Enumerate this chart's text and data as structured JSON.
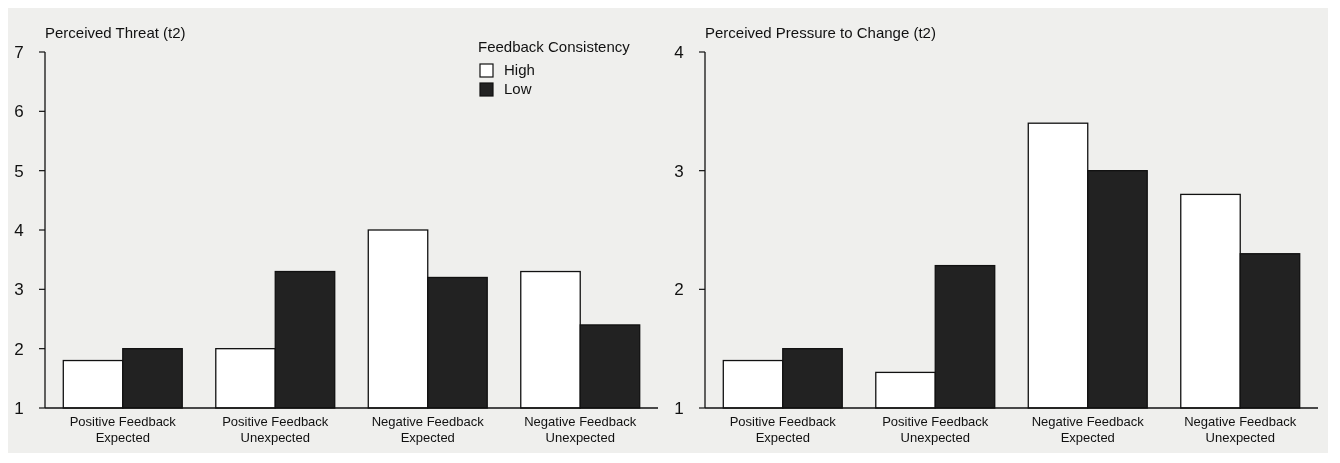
{
  "chart_data": [
    {
      "type": "bar",
      "title": "Perceived Threat (t2)",
      "categories": [
        "Positive Feedback\nExpected",
        "Positive Feedback\nUnexpected",
        "Negative Feedback\nExpected",
        "Negative Feedback\nUnexpected"
      ],
      "legend_title": "Feedback Consistency",
      "legend": "top right",
      "ylim": [
        1,
        7
      ],
      "yticks": [
        1,
        2,
        3,
        4,
        5,
        6,
        7
      ],
      "grid": false,
      "series": [
        {
          "name": "High",
          "color": "#ffffff",
          "values": [
            1.8,
            2.0,
            4.0,
            3.3
          ]
        },
        {
          "name": "Low",
          "color": "#222222",
          "values": [
            2.0,
            3.3,
            3.2,
            2.4
          ]
        }
      ]
    },
    {
      "type": "bar",
      "title": "Perceived Pressure to Change (t2)",
      "categories": [
        "Positive Feedback\nExpected",
        "Positive Feedback\nUnexpected",
        "Negative Feedback\nExpected",
        "Negative Feedback\nUnexpected"
      ],
      "legend": false,
      "ylim": [
        1,
        4
      ],
      "yticks": [
        1,
        2,
        3,
        4
      ],
      "grid": false,
      "series": [
        {
          "color": "#ffffff",
          "values": [
            1.4,
            1.3,
            3.4,
            2.8
          ]
        },
        {
          "color": "#222222",
          "values": [
            1.5,
            2.2,
            3.0,
            2.3
          ]
        }
      ]
    }
  ]
}
